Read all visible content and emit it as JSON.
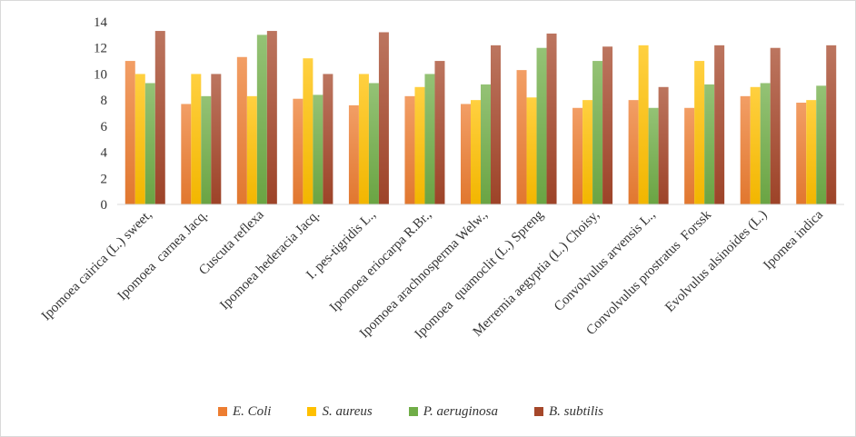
{
  "chart_data": {
    "type": "bar",
    "title": "",
    "xlabel": "",
    "ylabel": "",
    "ylim": [
      0,
      14
    ],
    "yticks": [
      0,
      2,
      4,
      6,
      8,
      10,
      12,
      14
    ],
    "grid": false,
    "legend_position": "bottom",
    "categories": [
      "Ipomoea cairica (L.) sweet,",
      "Ipomoea  carnea Jacq.",
      "Cuscuta reflexa",
      "Ipomoea hederacia Jacq.",
      "I. pes-tigridis L.,",
      "Ipomoea eriocarpa R.Br.,",
      "Ipomoea arachnosperma Welw.,",
      "Ipomoea  quamoclit (L.) Spreng",
      "Merremia aegyptia (L.) Choisy,",
      "Convolvulus arvensis L.,",
      "Convolvulus prostratus  Forssk",
      "Evolvulus alsinoides (L.)",
      "Ipomea indica"
    ],
    "series": [
      {
        "name": "E. Coli",
        "color": "#ED7D31",
        "values": [
          11,
          7.7,
          11.3,
          8.1,
          7.6,
          8.3,
          7.7,
          10.3,
          7.4,
          8.0,
          7.4,
          8.3,
          7.8
        ]
      },
      {
        "name": "S. aureus",
        "color": "#FFC000",
        "values": [
          10,
          10,
          8.3,
          11.2,
          10,
          9,
          8,
          8.2,
          8,
          12.2,
          11,
          9,
          8
        ]
      },
      {
        "name": "P. aeruginosa",
        "color": "#70AD47",
        "values": [
          9.3,
          8.3,
          13,
          8.4,
          9.3,
          10,
          9.2,
          12,
          11,
          7.4,
          9.2,
          9.3,
          9.1
        ]
      },
      {
        "name": "B. subtilis",
        "color": "#A5472A",
        "values": [
          13.3,
          10,
          13.3,
          10,
          13.2,
          11,
          12.2,
          13.1,
          12.1,
          9,
          12.2,
          12,
          12.2
        ]
      }
    ]
  }
}
